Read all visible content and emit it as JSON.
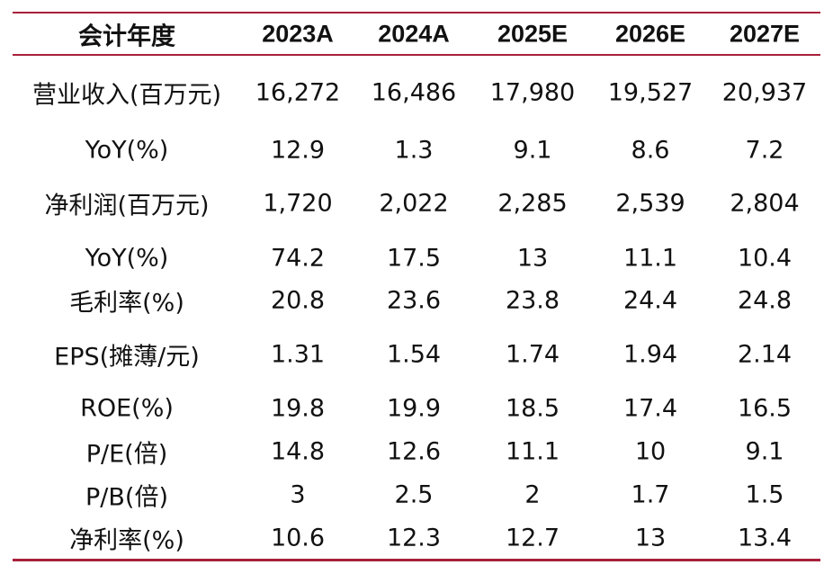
{
  "table": {
    "header": [
      "会计年度",
      "2023A",
      "2024A",
      "2025E",
      "2026E",
      "2027E"
    ],
    "rows": [
      [
        "营业收入(百万元)",
        "16,272",
        "16,486",
        "17,980",
        "19,527",
        "20,937"
      ],
      [
        "YoY(%)",
        "12.9",
        "1.3",
        "9.1",
        "8.6",
        "7.2"
      ],
      [
        "净利润(百万元)",
        "1,720",
        "2,022",
        "2,285",
        "2,539",
        "2,804"
      ],
      [
        "YoY(%)",
        "74.2",
        "17.5",
        "13",
        "11.1",
        "10.4"
      ],
      [
        "毛利率(%)",
        "20.8",
        "23.6",
        "23.8",
        "24.4",
        "24.8"
      ],
      [
        "EPS(摊薄/元)",
        "1.31",
        "1.54",
        "1.74",
        "1.94",
        "2.14"
      ],
      [
        "ROE(%)",
        "19.8",
        "19.9",
        "18.5",
        "17.4",
        "16.5"
      ],
      [
        "P/E(倍)",
        "14.8",
        "12.6",
        "11.1",
        "10",
        "9.1"
      ],
      [
        "P/B(倍)",
        "3",
        "2.5",
        "2",
        "1.7",
        "1.5"
      ],
      [
        "净利率(%)",
        "10.6",
        "12.3",
        "12.7",
        "13",
        "13.4"
      ]
    ]
  },
  "colors": {
    "rule": "#a8203a",
    "text": "#111111"
  }
}
